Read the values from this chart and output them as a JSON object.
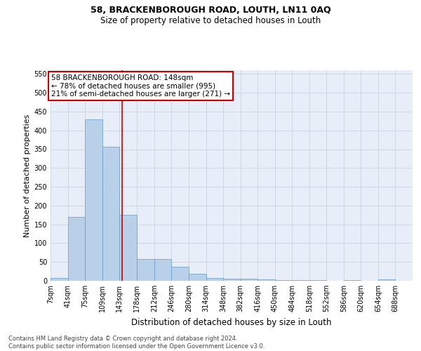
{
  "title": "58, BRACKENBOROUGH ROAD, LOUTH, LN11 0AQ",
  "subtitle": "Size of property relative to detached houses in Louth",
  "xlabel": "Distribution of detached houses by size in Louth",
  "ylabel": "Number of detached properties",
  "footer_line1": "Contains HM Land Registry data © Crown copyright and database right 2024.",
  "footer_line2": "Contains public sector information licensed under the Open Government Licence v3.0.",
  "annotation_line1": "58 BRACKENBOROUGH ROAD: 148sqm",
  "annotation_line2": "← 78% of detached houses are smaller (995)",
  "annotation_line3": "21% of semi-detached houses are larger (271) →",
  "property_size_sqm": 148,
  "bar_color": "#b8d0e8",
  "bar_edge_color": "#6699cc",
  "vline_color": "#cc0000",
  "annotation_box_edgecolor": "#cc0000",
  "grid_color": "#c8d4e4",
  "background_color": "#e8eef8",
  "bins": [
    7,
    41,
    75,
    109,
    143,
    178,
    212,
    246,
    280,
    314,
    348,
    382,
    416,
    450,
    484,
    518,
    552,
    586,
    620,
    654,
    688
  ],
  "bin_labels": [
    "7sqm",
    "41sqm",
    "75sqm",
    "109sqm",
    "143sqm",
    "178sqm",
    "212sqm",
    "246sqm",
    "280sqm",
    "314sqm",
    "348sqm",
    "382sqm",
    "416sqm",
    "450sqm",
    "484sqm",
    "518sqm",
    "552sqm",
    "586sqm",
    "620sqm",
    "654sqm",
    "688sqm"
  ],
  "bar_heights": [
    8,
    170,
    430,
    357,
    175,
    57,
    57,
    38,
    18,
    8,
    5,
    5,
    3,
    1,
    1,
    1,
    0,
    1,
    0,
    3
  ],
  "ylim": [
    0,
    560
  ],
  "yticks": [
    0,
    50,
    100,
    150,
    200,
    250,
    300,
    350,
    400,
    450,
    500,
    550
  ],
  "title_fontsize": 9,
  "subtitle_fontsize": 8.5,
  "ylabel_fontsize": 8,
  "xlabel_fontsize": 8.5,
  "tick_fontsize": 7,
  "footer_fontsize": 6,
  "annotation_fontsize": 7.5
}
